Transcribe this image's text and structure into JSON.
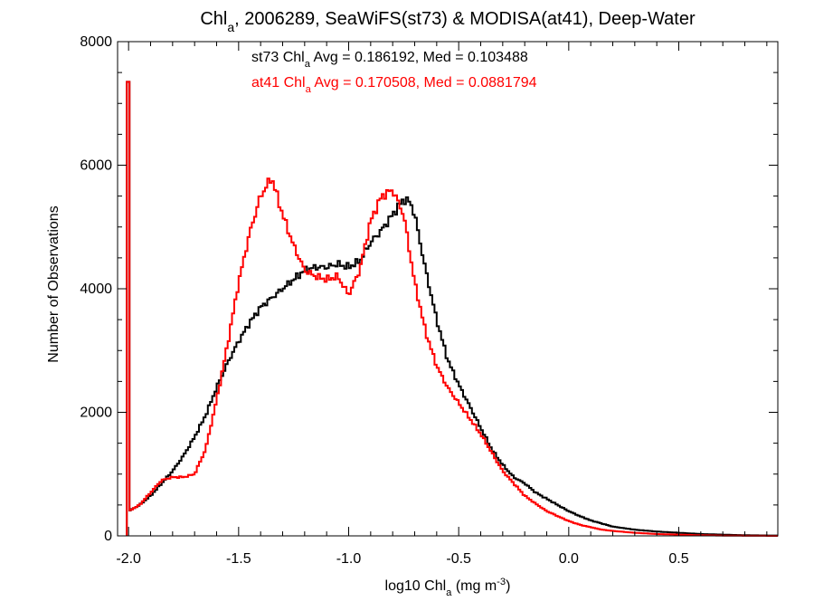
{
  "chart_data": {
    "type": "line",
    "title_parts": [
      "Chl",
      "a",
      ", 2006289, SeaWiFS(st73) & MODISA(at41), Deep-Water"
    ],
    "xlabel_parts": [
      "log10 Chl",
      "a",
      " (mg m",
      "-3",
      ")"
    ],
    "ylabel": "Number of Observations",
    "xlim": [
      -2.05,
      0.95
    ],
    "ylim": [
      0,
      8000
    ],
    "xticks": [
      -2.0,
      -1.5,
      -1.0,
      -0.5,
      0.0,
      0.5
    ],
    "xtick_labels": [
      "-2.0",
      "-1.5",
      "-1.0",
      "-0.5",
      "0.0",
      "0.5"
    ],
    "yticks": [
      0,
      2000,
      4000,
      6000,
      8000
    ],
    "ytick_labels": [
      "0",
      "2000",
      "4000",
      "6000",
      "8000"
    ],
    "grid": false,
    "annotations": [
      {
        "parts": [
          "st73 Chl",
          "a",
          " Avg = 0.186192, Med = 0.103488"
        ],
        "color": "#000000"
      },
      {
        "parts": [
          "at41 Chl",
          "a",
          " Avg = 0.170508, Med = 0.0881794"
        ],
        "color": "#ff0000"
      }
    ],
    "series": [
      {
        "color": "#000000",
        "spike": {
          "x": -2.0,
          "y": 7350
        },
        "x": [
          -2.0,
          -1.95,
          -1.9,
          -1.85,
          -1.8,
          -1.75,
          -1.7,
          -1.65,
          -1.6,
          -1.55,
          -1.5,
          -1.45,
          -1.4,
          -1.35,
          -1.3,
          -1.25,
          -1.2,
          -1.15,
          -1.1,
          -1.05,
          -1.0,
          -0.95,
          -0.9,
          -0.85,
          -0.8,
          -0.75,
          -0.72,
          -0.7,
          -0.65,
          -0.6,
          -0.55,
          -0.5,
          -0.45,
          -0.4,
          -0.35,
          -0.3,
          -0.25,
          -0.2,
          -0.15,
          -0.1,
          -0.05,
          0.0,
          0.05,
          0.1,
          0.15,
          0.2,
          0.3,
          0.4,
          0.5,
          0.6,
          0.7,
          0.8,
          0.95
        ],
        "y": [
          400,
          500,
          650,
          850,
          1050,
          1300,
          1600,
          1950,
          2400,
          2800,
          3150,
          3450,
          3700,
          3850,
          4000,
          4150,
          4300,
          4350,
          4350,
          4400,
          4350,
          4450,
          4750,
          4950,
          5200,
          5450,
          5400,
          5200,
          4300,
          3500,
          2850,
          2450,
          2100,
          1750,
          1400,
          1150,
          950,
          850,
          700,
          600,
          500,
          400,
          320,
          250,
          200,
          150,
          100,
          70,
          50,
          30,
          20,
          10,
          5
        ]
      },
      {
        "color": "#ff0000",
        "spike": {
          "x": -2.0,
          "y": 7350
        },
        "x": [
          -2.0,
          -1.95,
          -1.9,
          -1.85,
          -1.8,
          -1.75,
          -1.7,
          -1.65,
          -1.6,
          -1.55,
          -1.5,
          -1.45,
          -1.4,
          -1.35,
          -1.3,
          -1.25,
          -1.2,
          -1.15,
          -1.1,
          -1.05,
          -1.0,
          -0.95,
          -0.9,
          -0.85,
          -0.8,
          -0.75,
          -0.7,
          -0.65,
          -0.6,
          -0.55,
          -0.5,
          -0.45,
          -0.4,
          -0.35,
          -0.3,
          -0.25,
          -0.2,
          -0.15,
          -0.1,
          -0.05,
          0.0,
          0.05,
          0.1,
          0.15,
          0.2,
          0.3,
          0.4,
          0.5,
          0.6,
          0.7,
          0.8,
          0.95
        ],
        "y": [
          400,
          500,
          700,
          900,
          950,
          950,
          1000,
          1400,
          2200,
          3100,
          4100,
          4900,
          5500,
          5800,
          5200,
          4700,
          4300,
          4200,
          4150,
          4200,
          3900,
          4300,
          5100,
          5500,
          5600,
          5200,
          4100,
          3300,
          2750,
          2400,
          2150,
          1900,
          1650,
          1350,
          1050,
          850,
          650,
          520,
          400,
          320,
          240,
          180,
          140,
          100,
          80,
          50,
          30,
          20,
          10,
          5,
          2,
          0
        ]
      }
    ]
  }
}
